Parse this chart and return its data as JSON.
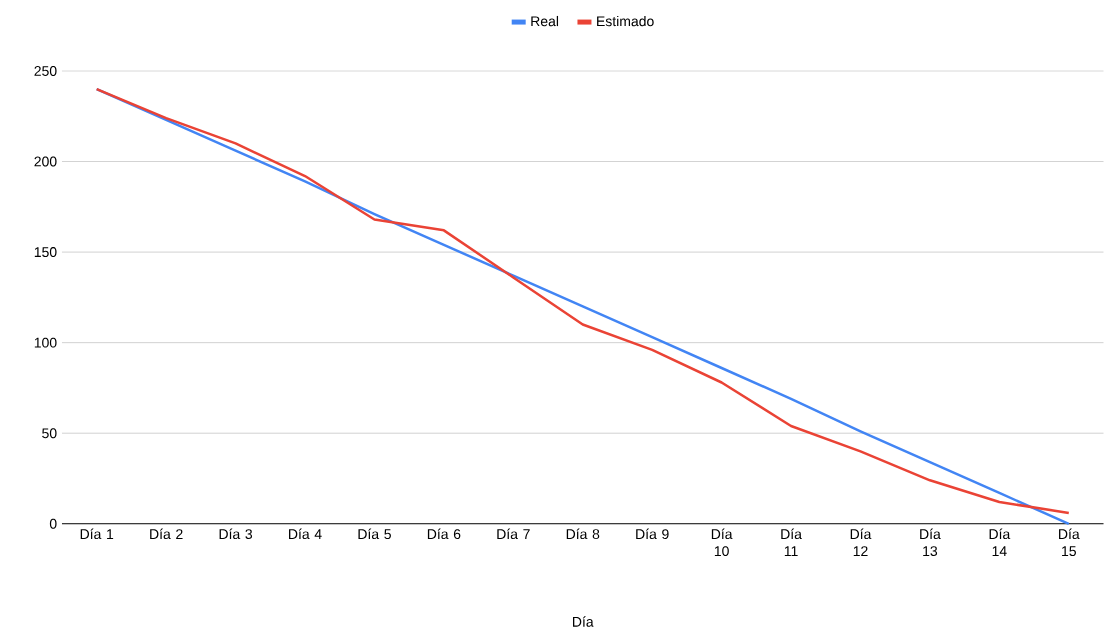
{
  "chart_data": {
    "type": "line",
    "xlabel": "Día",
    "categories": [
      "Día 1",
      "Día 2",
      "Día 3",
      "Día 4",
      "Día 5",
      "Día 6",
      "Día 7",
      "Día 8",
      "Día 9",
      "Día 10",
      "Día 11",
      "Día 12",
      "Día 13",
      "Día 14",
      "Día 15"
    ],
    "series": [
      {
        "name": "Real",
        "color": "#4285f4",
        "values": [
          240,
          223,
          206,
          189,
          171,
          154,
          137,
          120,
          103,
          86,
          69,
          51,
          34,
          17,
          0
        ]
      },
      {
        "name": "Estimado",
        "color": "#ea4335",
        "values": [
          240,
          224,
          210,
          192,
          168,
          162,
          136,
          110,
          96,
          78,
          54,
          40,
          24,
          12,
          6
        ]
      }
    ],
    "ylim": [
      0,
      250
    ],
    "yticks": [
      0,
      50,
      100,
      150,
      200,
      250
    ],
    "grid": "y",
    "legend": "top"
  }
}
